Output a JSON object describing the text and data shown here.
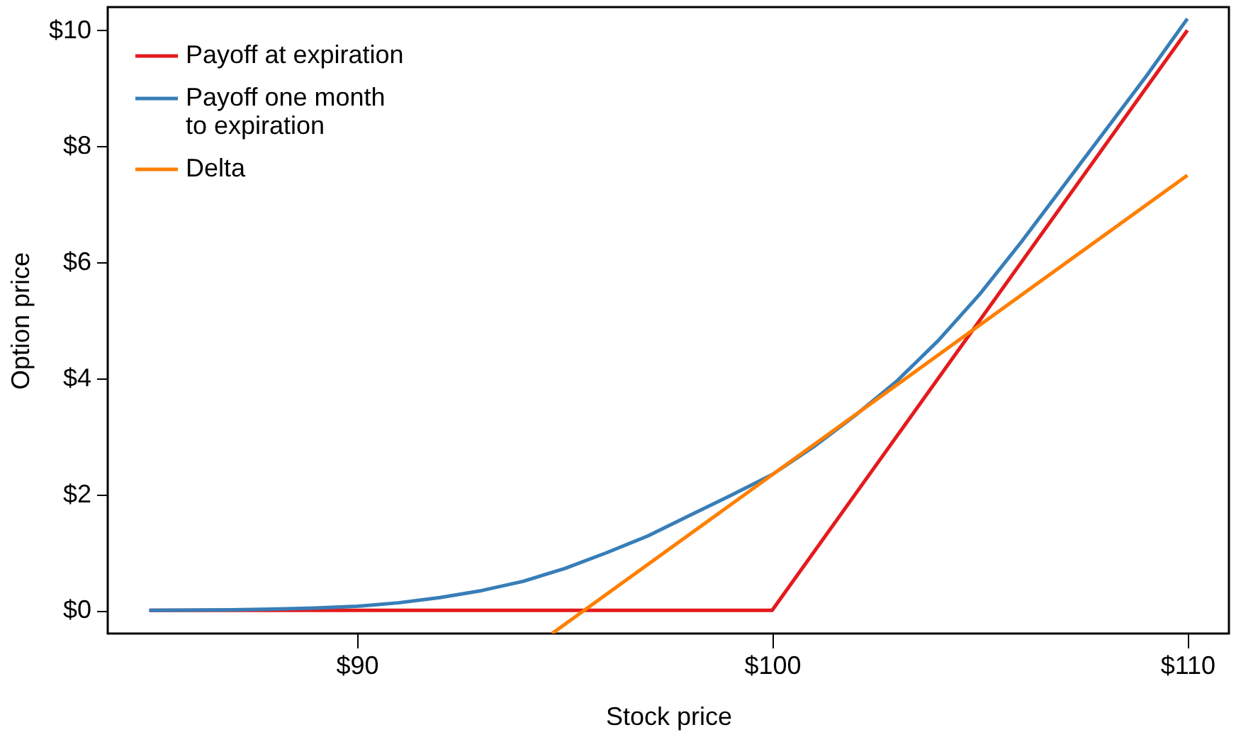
{
  "chart_data": {
    "type": "line",
    "xlabel": "Stock price",
    "ylabel": "Option price",
    "xlim": [
      84.0,
      111.0
    ],
    "ylim": [
      -0.4,
      10.4
    ],
    "xticks": [
      {
        "value": 90,
        "label": "$90"
      },
      {
        "value": 100,
        "label": "$100"
      },
      {
        "value": 110,
        "label": "$110"
      }
    ],
    "yticks": [
      {
        "value": 0,
        "label": "$0"
      },
      {
        "value": 2,
        "label": "$2"
      },
      {
        "value": 4,
        "label": "$4"
      },
      {
        "value": 6,
        "label": "$6"
      },
      {
        "value": 8,
        "label": "$8"
      },
      {
        "value": 10,
        "label": "$10"
      }
    ],
    "grid": false,
    "legend": "top left",
    "marker": "none",
    "line_style": "solid",
    "series": [
      {
        "name": "Payoff at expiration",
        "color": "#e41a1c",
        "x": [
          85,
          100,
          110
        ],
        "values": [
          0,
          0,
          10
        ]
      },
      {
        "name": "Payoff one month\n to expiration",
        "color": "#377eb8",
        "x": [
          85,
          87,
          88,
          89,
          90,
          91,
          92,
          93,
          94,
          95,
          96,
          97,
          98,
          99,
          100,
          101,
          102,
          103,
          104,
          105,
          106,
          107,
          108,
          109,
          110
        ],
        "values": [
          0,
          0.01,
          0.02,
          0.04,
          0.07,
          0.13,
          0.22,
          0.34,
          0.5,
          0.72,
          0.99,
          1.28,
          1.63,
          1.98,
          2.34,
          2.82,
          3.36,
          3.95,
          4.65,
          5.45,
          6.35,
          7.3,
          8.25,
          9.2,
          10.2
        ]
      },
      {
        "name": "Delta",
        "color": "#ff7f00",
        "x": [
          94.7,
          110
        ],
        "values": [
          -0.4,
          7.5
        ]
      }
    ]
  }
}
